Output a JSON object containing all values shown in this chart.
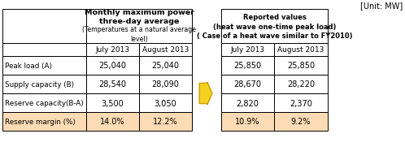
{
  "unit_label": "[Unit: MW]",
  "left_header_main": "Monthly maximum power\nthree-day average",
  "left_header_sub": "(Temperatures at a natural average\nlevel)",
  "right_header_main": "Reported values\n(heat wave one-time peak load)\n( Case of a heat wave similar to FY2010)",
  "col_headers": [
    "July 2013",
    "August 2013"
  ],
  "row_labels": [
    "Peak load (A)",
    "Supply capacity (B)",
    "Reserve capacity(B-A)",
    "Reserve margin (%)"
  ],
  "left_data": [
    [
      "25,040",
      "25,040"
    ],
    [
      "28,540",
      "28,090"
    ],
    [
      "3,500",
      "3,050"
    ],
    [
      "14.0%",
      "12.2%"
    ]
  ],
  "right_data": [
    [
      "25,850",
      "25,850"
    ],
    [
      "28,670",
      "28,220"
    ],
    [
      "2,820",
      "2,370"
    ],
    [
      "10.9%",
      "9.2%"
    ]
  ],
  "highlight_color": "#FDDCB5",
  "border_color": "#000000",
  "arrow_color": "#F5D020",
  "arrow_edge_color": "#C8A000"
}
